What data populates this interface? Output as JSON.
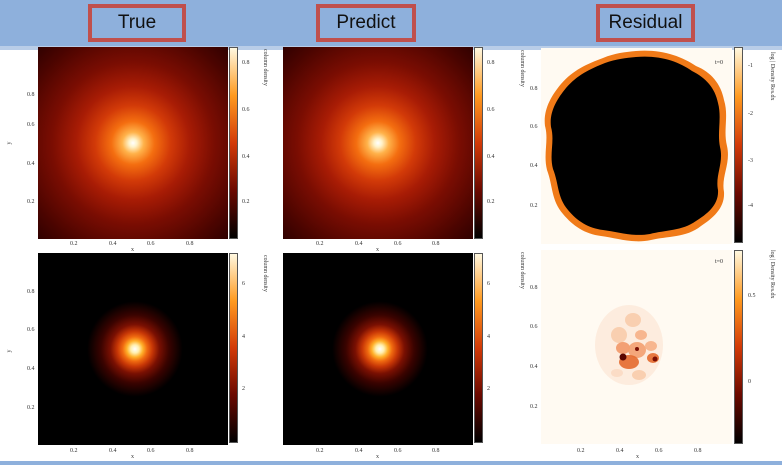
{
  "columns": [
    "True",
    "Predict",
    "Residual"
  ],
  "x_ticks": [
    "0.2",
    "0.4",
    "0.6",
    "0.8"
  ],
  "y_ticks": [
    "0.8",
    "0.6",
    "0.4",
    "0.2"
  ],
  "xlabel": "x",
  "ylabel": "y",
  "density_label": "column density",
  "residual_label": "log | Density Res.dx",
  "time_label": "t=0",
  "cbar_top_density": [
    "0.8",
    "0.6",
    "0.4",
    "0.2"
  ],
  "cbar_bottom_density": [
    "6",
    "4",
    "2"
  ],
  "cbar_top_residual": [
    "-1",
    "-2",
    "-3",
    "-4"
  ],
  "cbar_bottom_residual": [
    "0.5",
    "0"
  ]
}
